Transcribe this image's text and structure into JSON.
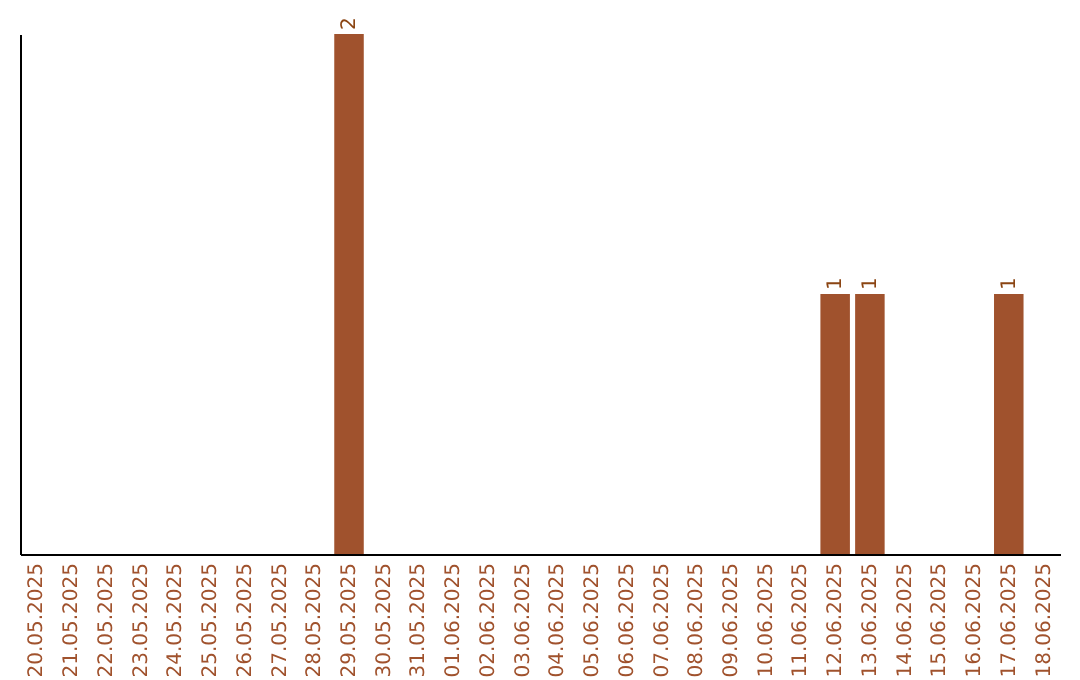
{
  "chart_data": {
    "type": "bar",
    "categories": [
      "20.05.2025",
      "21.05.2025",
      "22.05.2025",
      "23.05.2025",
      "24.05.2025",
      "25.05.2025",
      "26.05.2025",
      "27.05.2025",
      "28.05.2025",
      "29.05.2025",
      "30.05.2025",
      "31.05.2025",
      "01.06.2025",
      "02.06.2025",
      "03.06.2025",
      "04.06.2025",
      "05.06.2025",
      "06.06.2025",
      "07.06.2025",
      "08.06.2025",
      "09.06.2025",
      "10.06.2025",
      "11.06.2025",
      "12.06.2025",
      "13.06.2025",
      "14.06.2025",
      "15.06.2025",
      "16.06.2025",
      "17.06.2025",
      "18.06.2025"
    ],
    "values": [
      0,
      0,
      0,
      0,
      0,
      0,
      0,
      0,
      0,
      2,
      0,
      0,
      0,
      0,
      0,
      0,
      0,
      0,
      0,
      0,
      0,
      0,
      0,
      1,
      1,
      0,
      0,
      0,
      1,
      0
    ],
    "value_labels": [
      null,
      null,
      null,
      null,
      null,
      null,
      null,
      null,
      null,
      "2",
      null,
      null,
      null,
      null,
      null,
      null,
      null,
      null,
      null,
      null,
      null,
      null,
      null,
      "1",
      "1",
      null,
      null,
      null,
      "1",
      null
    ],
    "color": "#a0522d",
    "tick_labels": "x",
    "grid": false
  }
}
